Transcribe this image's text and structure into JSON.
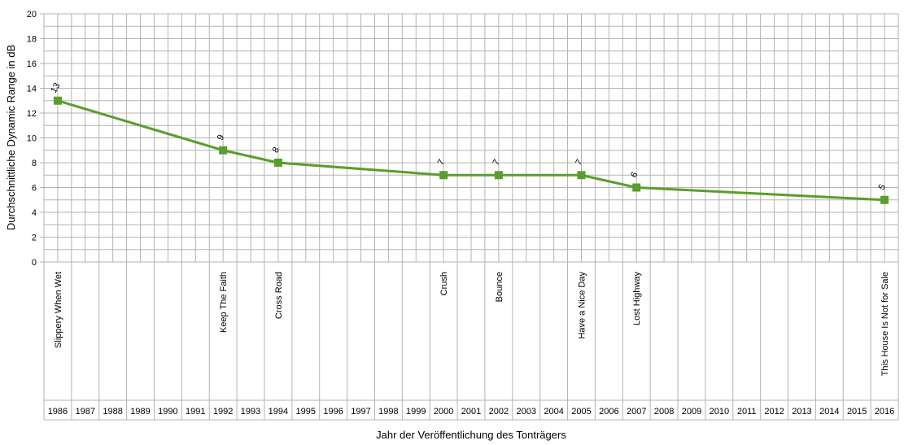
{
  "chart_data": {
    "type": "line",
    "xlabel": "Jahr der Veröffentlichung des Tonträgers",
    "ylabel": "Durchschnittliche Dynamic Range in dB",
    "ylim": [
      0,
      20
    ],
    "y_ticks": [
      0,
      2,
      4,
      6,
      8,
      10,
      12,
      14,
      16,
      18,
      20
    ],
    "y_minor_step": 1,
    "years": [
      1986,
      1987,
      1988,
      1989,
      1990,
      1991,
      1992,
      1993,
      1994,
      1995,
      1996,
      1997,
      1998,
      1999,
      2000,
      2001,
      2002,
      2003,
      2004,
      2005,
      2006,
      2007,
      2008,
      2009,
      2010,
      2011,
      2012,
      2013,
      2014,
      2015,
      2016
    ],
    "grid": true,
    "legend": "none",
    "series": [
      {
        "color": "#5a9e2b",
        "points": [
          {
            "year": 1986,
            "album": "Slippery When Wet",
            "value": 13
          },
          {
            "year": 1992,
            "album": "Keep The Faith",
            "value": 9
          },
          {
            "year": 1994,
            "album": "Cross Road",
            "value": 8
          },
          {
            "year": 2000,
            "album": "Crush",
            "value": 7
          },
          {
            "year": 2002,
            "album": "Bounce",
            "value": 7
          },
          {
            "year": 2005,
            "album": "Have a Nice Day",
            "value": 7
          },
          {
            "year": 2007,
            "album": "Lost Highway",
            "value": 6
          },
          {
            "year": 2016,
            "album": "This House Is Not for Sale",
            "value": 5
          }
        ]
      }
    ]
  }
}
